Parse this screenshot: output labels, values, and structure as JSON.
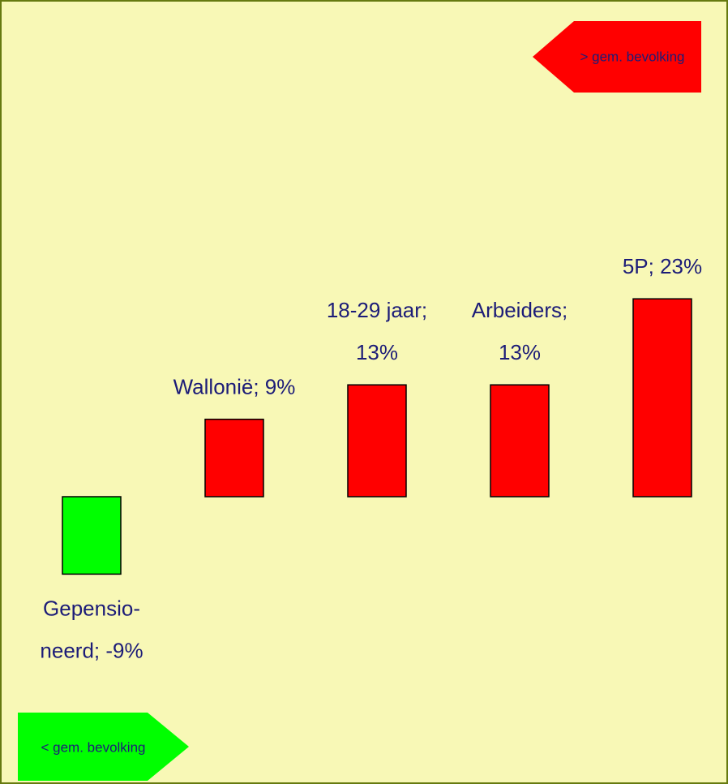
{
  "chart_data": {
    "type": "bar",
    "values": [
      -9,
      9,
      13,
      13,
      23
    ],
    "value_labels": [
      [
        "Gepensio-",
        "neerd; -9%"
      ],
      [
        "Wallonië; 9%"
      ],
      [
        "18-29 jaar;",
        "13%"
      ],
      [
        "Arbeiders;",
        "13%"
      ],
      [
        "5P; 23%"
      ]
    ],
    "colors": [
      "#00ff00",
      "#ff0000",
      "#ff0000",
      "#ff0000",
      "#ff0000"
    ],
    "annotations": [
      "> gem. bevolking",
      "< gem. bevolking"
    ]
  }
}
